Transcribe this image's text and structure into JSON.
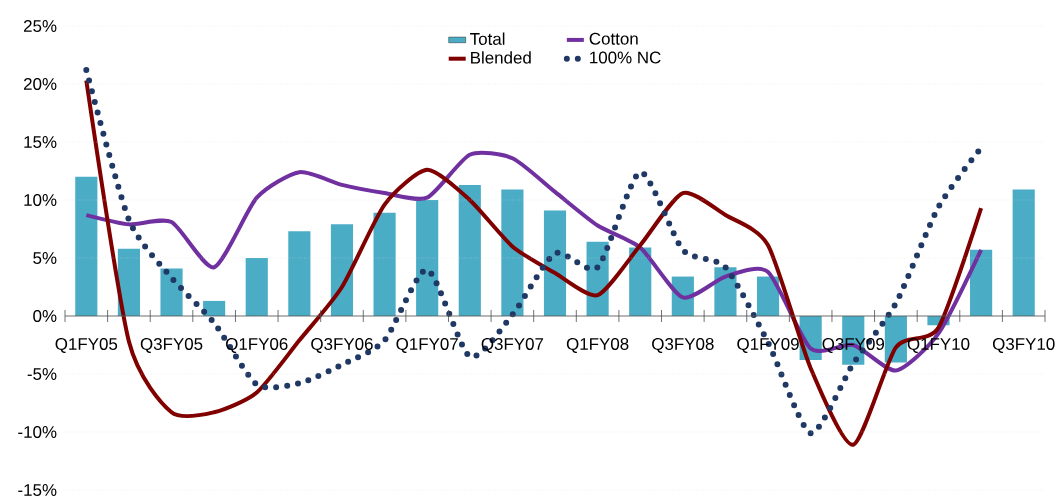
{
  "chart_data": {
    "type": "bar",
    "categories": [
      "Q1FY05",
      null,
      "Q3FY05",
      null,
      "Q1FY06",
      null,
      "Q3FY06",
      null,
      "Q1FY07",
      null,
      "Q3FY07",
      null,
      "Q1FY08",
      null,
      "Q3FY08",
      null,
      "Q1FY09",
      null,
      "Q3FY09",
      null,
      "Q1FY10",
      null,
      "Q3FY10"
    ],
    "series": [
      {
        "name": "Total",
        "color": "#4bacc6",
        "values": [
          12.0,
          5.8,
          4.1,
          1.3,
          5.0,
          7.3,
          7.9,
          8.9,
          10.0,
          11.3,
          10.9,
          9.1,
          6.4,
          5.9,
          3.4,
          4.2,
          3.4,
          -3.8,
          -4.2,
          -4.0,
          -0.8,
          5.7,
          10.9
        ]
      },
      {
        "name": "Cotton",
        "type": "line",
        "color": "#7030a0",
        "line_style": "solid",
        "values": [
          8.7,
          7.9,
          8.1,
          4.2,
          10.2,
          12.4,
          11.3,
          10.6,
          10.2,
          13.9,
          13.6,
          10.7,
          7.8,
          5.9,
          1.6,
          3.4,
          3.8,
          -2.8,
          -2.5,
          -4.7,
          -1.5,
          5.7,
          null
        ]
      },
      {
        "name": "Blended",
        "type": "line",
        "color": "#800000",
        "line_style": "solid",
        "values": [
          20.3,
          -2.2,
          -8.3,
          -8.3,
          -6.6,
          -2.1,
          2.5,
          9.6,
          12.6,
          10.0,
          6.0,
          3.7,
          1.8,
          6.1,
          10.6,
          8.7,
          6.1,
          -4.5,
          -11.1,
          -2.7,
          -1.0,
          9.3,
          null
        ]
      },
      {
        "name": "100% NC",
        "type": "line",
        "color": "#1f3864",
        "line_style": "dotted",
        "values": [
          21.2,
          8.3,
          3.3,
          -0.6,
          -5.9,
          -5.8,
          -4.2,
          -2.1,
          4.0,
          -3.5,
          0.1,
          5.4,
          4.2,
          12.4,
          5.7,
          4.2,
          -2.3,
          -10.1,
          -4.1,
          1.1,
          9.4,
          14.5,
          null
        ]
      }
    ],
    "ylim": [
      -15,
      25
    ],
    "yticks": [
      {
        "value": -15,
        "label": "-15%"
      },
      {
        "value": -10,
        "label": "-10%"
      },
      {
        "value": -5,
        "label": "-5%"
      },
      {
        "value": 0,
        "label": "0%"
      },
      {
        "value": 5,
        "label": "5%"
      },
      {
        "value": 10,
        "label": "10%"
      },
      {
        "value": 15,
        "label": "15%"
      },
      {
        "value": 20,
        "label": "20%"
      },
      {
        "value": 25,
        "label": "25%"
      }
    ],
    "grid": "y",
    "legend": "top",
    "marker": "none"
  }
}
